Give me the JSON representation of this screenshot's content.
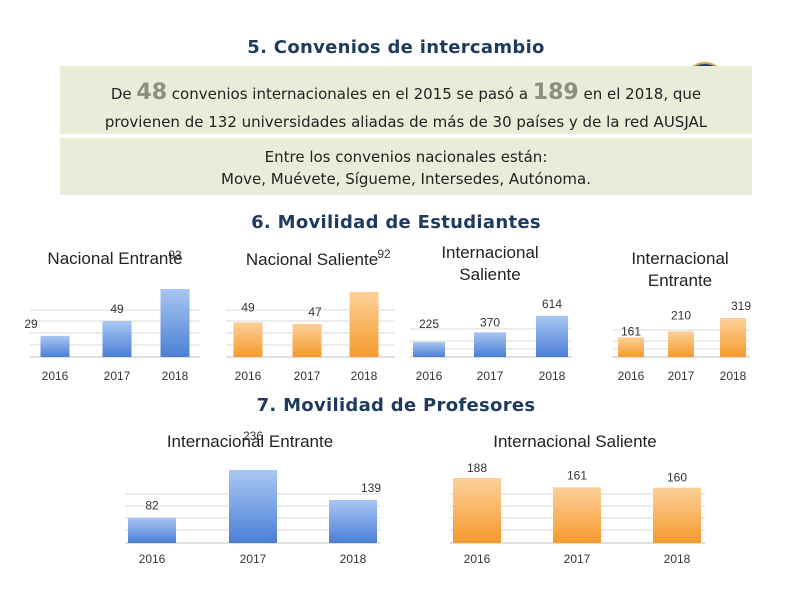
{
  "sections": {
    "convenios_title": "5. Convenios de intercambio",
    "estudiantes_title": "6. Movilidad de Estudiantes",
    "profesores_title": "7. Movilidad de Profesores"
  },
  "convenios": {
    "l1_a": "De ",
    "l1_n1": "48",
    "l1_b": " convenios internacionales en el 2015 se pasó a ",
    "l1_n2": "189",
    "l1_c": " en el 2018, que",
    "line2": "provienen de 132 universidades aliadas de más de 30 países y de la red AUSJAL",
    "nacionales_intro": "Entre los convenios nacionales están:",
    "nacionales_list": "Move, Muévete, Sígueme, Intersedes, Autónoma."
  },
  "colors": {
    "blue": "#4a7fd6",
    "blue_light": "#a9c6f3",
    "orange": "#f59a2c",
    "orange_light": "#fcd19a",
    "grid": "#d9d9d9"
  },
  "chart_data": [
    {
      "type": "bar",
      "title": "Nacional Entrante",
      "categories": [
        "2016",
        "2017",
        "2018"
      ],
      "values": [
        29,
        49,
        93
      ],
      "color": "blue"
    },
    {
      "type": "bar",
      "title": "Nacional Saliente",
      "categories": [
        "2016",
        "2017",
        "2018"
      ],
      "values": [
        49,
        47,
        92
      ],
      "color": "orange"
    },
    {
      "type": "bar",
      "title": "Internacional Saliente",
      "categories": [
        "2016",
        "2017",
        "2018"
      ],
      "values": [
        225,
        370,
        614
      ],
      "color": "blue"
    },
    {
      "type": "bar",
      "title": "Internacional Entrante",
      "categories": [
        "2016",
        "2017",
        "2018"
      ],
      "values": [
        161,
        210,
        319
      ],
      "color": "orange"
    },
    {
      "type": "bar",
      "title": "Internacional Entrante",
      "categories": [
        "2016",
        "2017",
        "2018"
      ],
      "values": [
        82,
        236,
        139
      ],
      "color": "blue"
    },
    {
      "type": "bar",
      "title": "Internacional Saliente",
      "categories": [
        "2016",
        "2017",
        "2018"
      ],
      "values": [
        188,
        161,
        160
      ],
      "color": "orange"
    }
  ]
}
